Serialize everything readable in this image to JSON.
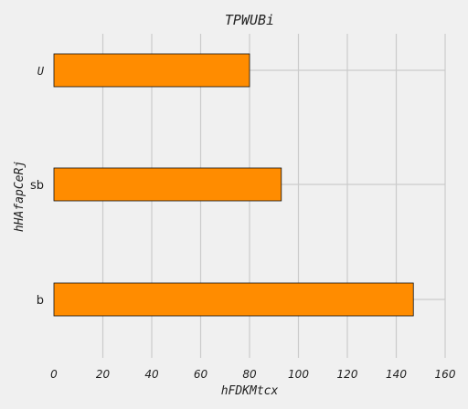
{
  "chart_data": {
    "type": "bar",
    "orientation": "horizontal",
    "title": "TPWUBi",
    "xlabel": "hFDKMtcx",
    "ylabel": "hHAfapCeRj",
    "categories": [
      "b",
      "sb",
      "U"
    ],
    "values": [
      147,
      93,
      80
    ],
    "xlim": [
      0,
      160
    ],
    "xticks": [
      "0",
      "20",
      "40",
      "60",
      "80",
      "100",
      "120",
      "140",
      "160"
    ],
    "grid": true,
    "bar_color": "#ff8c00",
    "background": "#f0f0f0"
  }
}
